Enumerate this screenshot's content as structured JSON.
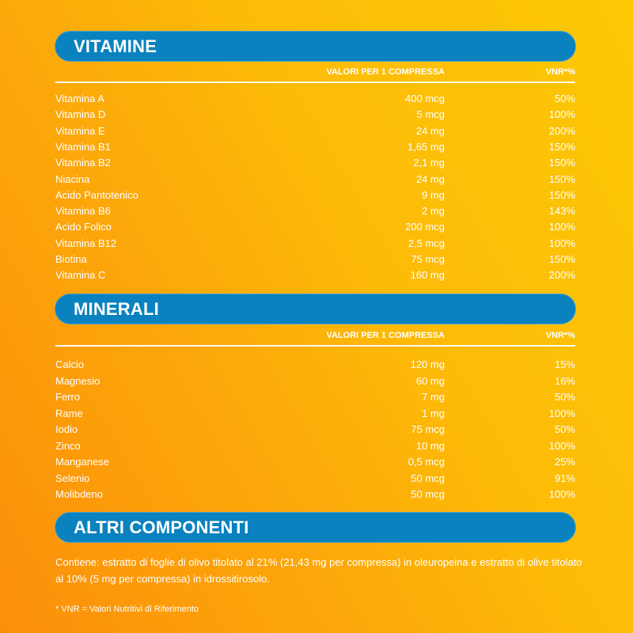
{
  "colors": {
    "banner": "#0a82bf",
    "background_start": "#fb8f0a",
    "background_end": "#fcc804",
    "text": "#ffffff"
  },
  "vitamine": {
    "title": "VITAMINE",
    "col_value": "VALORI PER 1 COMPRESSA",
    "col_vnr": "VNR*%",
    "rows": [
      {
        "name": "Vitamina A",
        "value": "400 mcg",
        "vnr": "50%"
      },
      {
        "name": "Vitamina D",
        "value": "5 mcg",
        "vnr": "100%"
      },
      {
        "name": "Vitamina E",
        "value": "24 mg",
        "vnr": "200%"
      },
      {
        "name": "Vitamina B1",
        "value": "1,65 mg",
        "vnr": "150%"
      },
      {
        "name": "Vitamina B2",
        "value": "2,1 mg",
        "vnr": "150%"
      },
      {
        "name": "Niacina",
        "value": "24 mg",
        "vnr": "150%"
      },
      {
        "name": "Acido Pantotenico",
        "value": "9 mg",
        "vnr": "150%"
      },
      {
        "name": "Vitamina B6",
        "value": "2 mg",
        "vnr": "143%"
      },
      {
        "name": "Acido Folico",
        "value": "200 mcg",
        "vnr": "100%"
      },
      {
        "name": "Vitamina B12",
        "value": "2,5 mcg",
        "vnr": "100%"
      },
      {
        "name": "Biotina",
        "value": "75 mcg",
        "vnr": "150%"
      },
      {
        "name": "Vitamina C",
        "value": "160 mg",
        "vnr": "200%"
      }
    ]
  },
  "minerali": {
    "title": "MINERALI",
    "col_value": "VALORI PER 1 COMPRESSA",
    "col_vnr": "VNR*%",
    "rows": [
      {
        "name": "Calcio",
        "value": "120 mg",
        "vnr": "15%"
      },
      {
        "name": "Magnesio",
        "value": "60 mg",
        "vnr": "16%"
      },
      {
        "name": "Ferro",
        "value": "7 mg",
        "vnr": "50%"
      },
      {
        "name": "Rame",
        "value": "1 mg",
        "vnr": "100%"
      },
      {
        "name": "Iodio",
        "value": "75 mcg",
        "vnr": "50%"
      },
      {
        "name": "Zinco",
        "value": "10 mg",
        "vnr": "100%"
      },
      {
        "name": "Manganese",
        "value": "0,5 mcg",
        "vnr": "25%"
      },
      {
        "name": "Selenio",
        "value": "50 mcg",
        "vnr": "91%"
      },
      {
        "name": "Molibdeno",
        "value": "50 mcg",
        "vnr": "100%"
      }
    ]
  },
  "altri": {
    "title": "ALTRI COMPONENTI",
    "text": "Contiene: estratto di foglie di olivo titolato al 21% (21,43 mg per compressa) in oleuropeina e estratto di olive titolato al 10% (5 mg per compressa) in idrossitirosolo."
  },
  "footnote": "* VNR = Valori Nutritivi di Riferimento"
}
